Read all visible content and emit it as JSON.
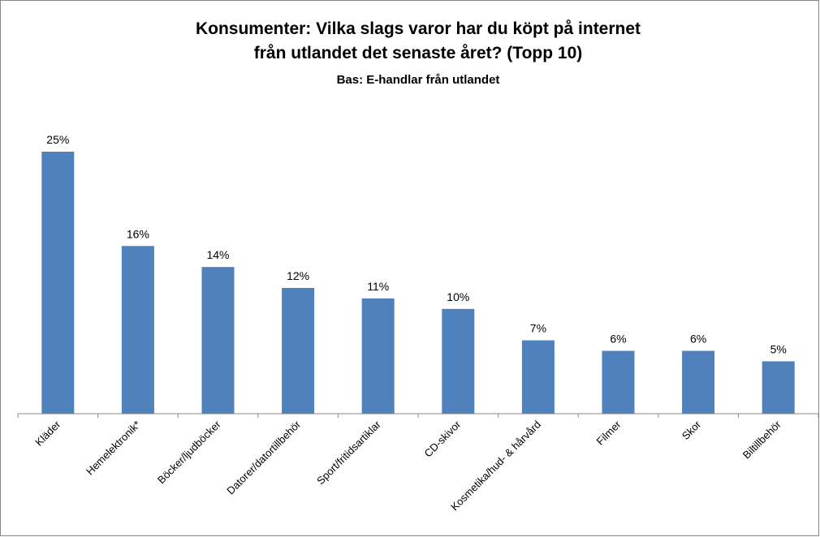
{
  "chart_data": {
    "type": "bar",
    "title": "Konsumenter: Vilka slags varor har du köpt på internet",
    "title_line2": "från utlandet det senaste året? (Topp 10)",
    "subtitle": "Bas: E-handlar  från utlandet",
    "categories": [
      "Kläder",
      "Hemelektronik*",
      "Böcker/ljudböcker",
      "Datorer/datortillbehör",
      "Sport/fritidsartiklar",
      "CD-skivor",
      "Kosmetika/hud- & hårvård",
      "Filmer",
      "Skor",
      "Biltillbehör"
    ],
    "values": [
      25,
      16,
      14,
      12,
      11,
      10,
      7,
      6,
      6,
      5
    ],
    "value_labels": [
      "25%",
      "16%",
      "14%",
      "12%",
      "11%",
      "10%",
      "7%",
      "6%",
      "6%",
      "5%"
    ],
    "color": "#4f81bd"
  }
}
